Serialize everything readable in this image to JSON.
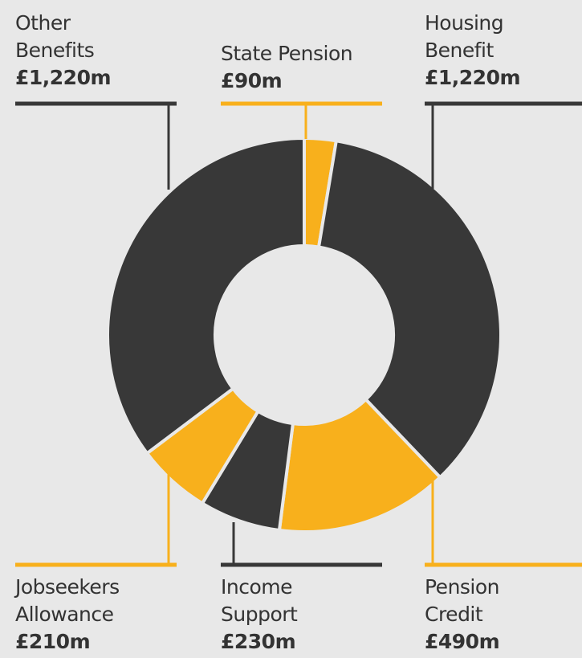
{
  "colors": {
    "dark": "#383838",
    "yellow": "#f8b01c",
    "background": "#e8e8e8",
    "separator": "#e8e8e8"
  },
  "chart_data": {
    "type": "pie",
    "variant": "donut",
    "unit": "£m",
    "title": "",
    "slices": [
      {
        "label_lines": [
          "State Pension"
        ],
        "value": 90,
        "value_text": "£90m",
        "color": "yellow"
      },
      {
        "label_lines": [
          "Housing",
          "Benefit"
        ],
        "value": 1220,
        "value_text": "£1,220m",
        "color": "dark"
      },
      {
        "label_lines": [
          "Pension",
          "Credit"
        ],
        "value": 490,
        "value_text": "£490m",
        "color": "yellow"
      },
      {
        "label_lines": [
          "Income",
          "Support"
        ],
        "value": 230,
        "value_text": "£230m",
        "color": "dark"
      },
      {
        "label_lines": [
          "Jobseekers",
          "Allowance"
        ],
        "value": 210,
        "value_text": "£210m",
        "color": "yellow"
      },
      {
        "label_lines": [
          "Other",
          "Benefits"
        ],
        "value": 1220,
        "value_text": "£1,220m",
        "color": "dark"
      }
    ]
  }
}
